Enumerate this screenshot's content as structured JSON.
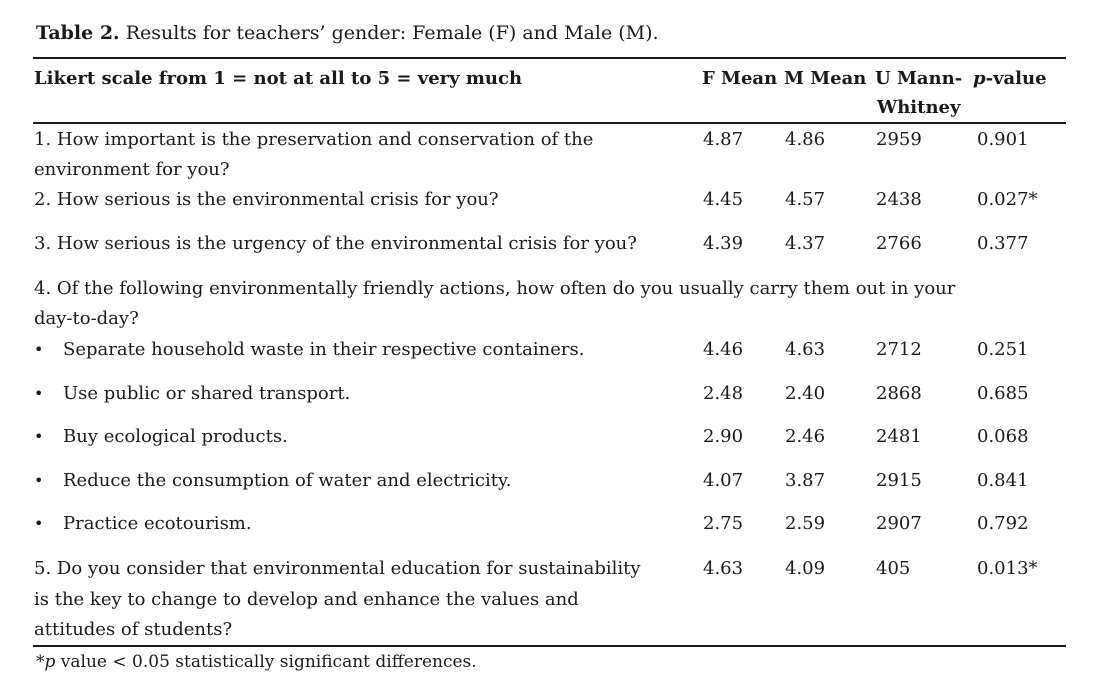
{
  "caption": {
    "label": "Table 2.",
    "text": "Results for teachers’ gender: Female (F) and Male (M)."
  },
  "columns": {
    "question": "Likert scale from 1 = not at all to 5 = very much",
    "f_mean": "F Mean",
    "m_mean": "M Mean",
    "u_line1": "U Mann-",
    "u_line2": "Whitney",
    "p_italic": "p",
    "p_rest": "-value"
  },
  "rows": [
    {
      "q_line1": "1. How important is the preservation and conservation of the",
      "q_line2": "environment for you?",
      "f": "4.87",
      "m": "4.86",
      "u": "2959",
      "p": "0.901"
    },
    {
      "q_line1": "2. How serious is the environmental crisis for you?",
      "f": "4.45",
      "m": "4.57",
      "u": "2438",
      "p": "0.027*"
    },
    {
      "q_line1": "3. How serious is the urgency of the environmental crisis for you?",
      "f": "4.39",
      "m": "4.37",
      "u": "2766",
      "p": "0.377"
    },
    {
      "q_line1": "4. Of the following environmentally friendly actions, how often do you usually carry them out in your",
      "q_line2": "day-to-day?"
    },
    {
      "q_line1": "Separate household waste in their respective containers.",
      "f": "4.46",
      "m": "4.63",
      "u": "2712",
      "p": "0.251"
    },
    {
      "q_line1": "Use public or shared transport.",
      "f": "2.48",
      "m": "2.40",
      "u": "2868",
      "p": "0.685"
    },
    {
      "q_line1": "Buy ecological products.",
      "f": "2.90",
      "m": "2.46",
      "u": "2481",
      "p": "0.068"
    },
    {
      "q_line1": "Reduce the consumption of water and electricity.",
      "f": "4.07",
      "m": "3.87",
      "u": "2915",
      "p": "0.841"
    },
    {
      "q_line1": "Practice ecotourism.",
      "f": "2.75",
      "m": "2.59",
      "u": "2907",
      "p": "0.792"
    },
    {
      "q_line1": "5. Do you consider that environmental education for sustainability",
      "q_line2": "is the key to change to develop and enhance the values and",
      "q_line3": "attitudes of students?",
      "f": "4.63",
      "m": "4.09",
      "u": "405",
      "p": "0.013*"
    }
  ],
  "bullet_glyph": "•",
  "footnote": {
    "prefix": "*",
    "italic": "p",
    "rest": " value < 0.05 statistically significant differences."
  }
}
